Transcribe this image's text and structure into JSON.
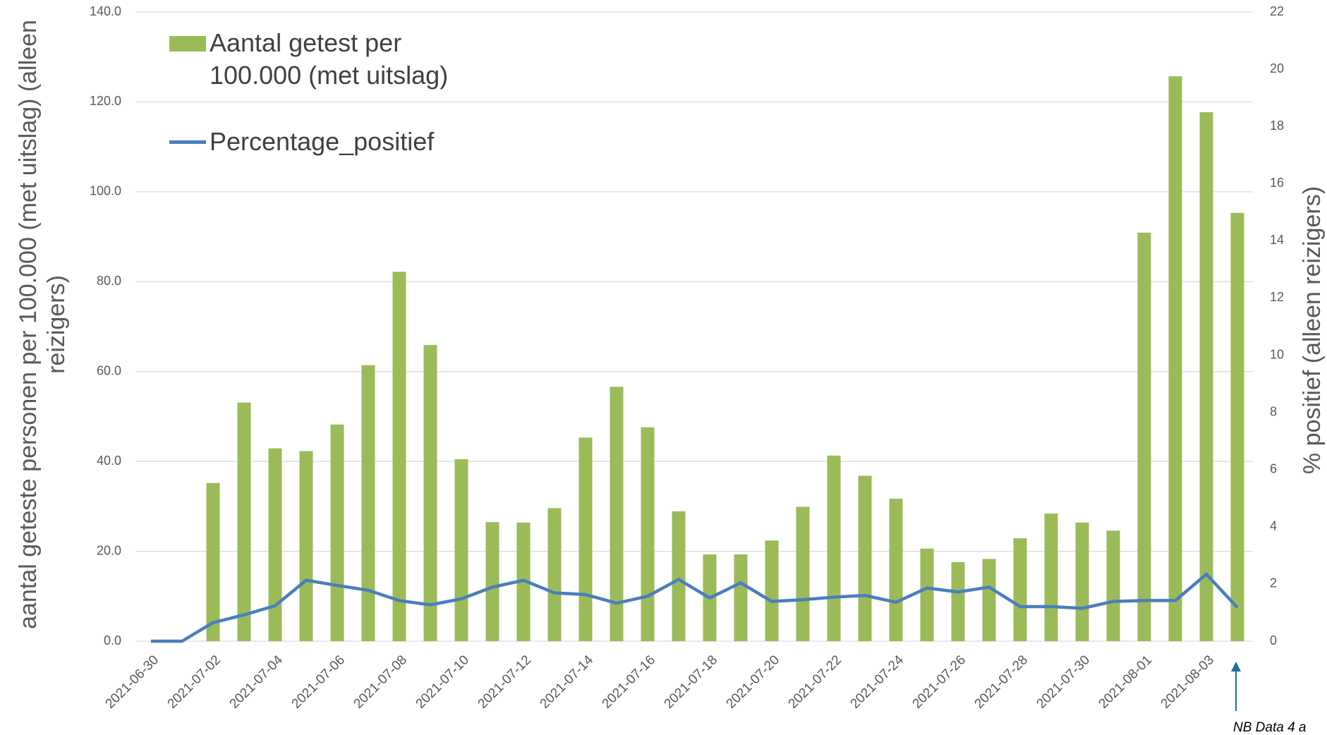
{
  "chart_data": {
    "type": "bar_line",
    "ylabel": "aantal geteste personen per 100.000 (met uitslag) (alleen reizigers)",
    "y2label": "% positief (alleen reizigers)",
    "annotation": "NB Data 4 a",
    "categories": [
      "2021-06-30",
      null,
      "2021-07-02",
      null,
      "2021-07-04",
      null,
      "2021-07-06",
      null,
      "2021-07-08",
      null,
      "2021-07-10",
      null,
      "2021-07-12",
      null,
      "2021-07-14",
      null,
      "2021-07-16",
      null,
      "2021-07-18",
      null,
      "2021-07-20",
      null,
      "2021-07-22",
      null,
      "2021-07-24",
      null,
      "2021-07-26",
      null,
      "2021-07-28",
      null,
      "2021-07-30",
      null,
      "2021-08-01",
      null,
      "2021-08-03",
      null
    ],
    "series": [
      {
        "name": "Aantal getest per 100.000 (met uitslag)",
        "type": "bar",
        "color": "#9bbb59",
        "values": [
          0,
          0,
          35.2,
          53.1,
          42.9,
          42.3,
          48.2,
          61.4,
          82.2,
          65.9,
          40.5,
          26.5,
          26.4,
          29.6,
          45.3,
          56.6,
          47.6,
          28.9,
          19.3,
          19.3,
          22.4,
          29.9,
          41.3,
          36.8,
          31.7,
          20.6,
          17.6,
          18.3,
          22.9,
          28.4,
          26.4,
          24.6,
          90.9,
          125.7,
          117.7,
          95.3
        ]
      },
      {
        "name": "Percentage_positief",
        "type": "line",
        "axis": "y2",
        "color": "#4a7ebb",
        "values": [
          0,
          0,
          0.65,
          0.92,
          1.24,
          2.13,
          1.95,
          1.78,
          1.42,
          1.27,
          1.48,
          1.89,
          2.13,
          1.69,
          1.63,
          1.33,
          1.57,
          2.16,
          1.51,
          2.04,
          1.39,
          1.45,
          1.54,
          1.6,
          1.36,
          1.86,
          1.72,
          1.89,
          1.21,
          1.21,
          1.15,
          1.39,
          1.42,
          1.42,
          2.34,
          1.18
        ]
      }
    ],
    "ylim": [
      0,
      140
    ],
    "yticks": [
      {
        "value": 0,
        "label": "0.0"
      },
      {
        "value": 20,
        "label": "20.0"
      },
      {
        "value": 40,
        "label": "40.0"
      },
      {
        "value": 60,
        "label": "60.0"
      },
      {
        "value": 80,
        "label": "80.0"
      },
      {
        "value": 100,
        "label": "100.0"
      },
      {
        "value": 120,
        "label": "120.0"
      },
      {
        "value": 140,
        "label": "140.0"
      }
    ],
    "y2lim": [
      0,
      22
    ],
    "y2ticks": [
      0,
      2,
      4,
      6,
      8,
      10,
      12,
      14,
      16,
      18,
      20,
      22
    ],
    "grid": true,
    "legend": "upper left"
  }
}
